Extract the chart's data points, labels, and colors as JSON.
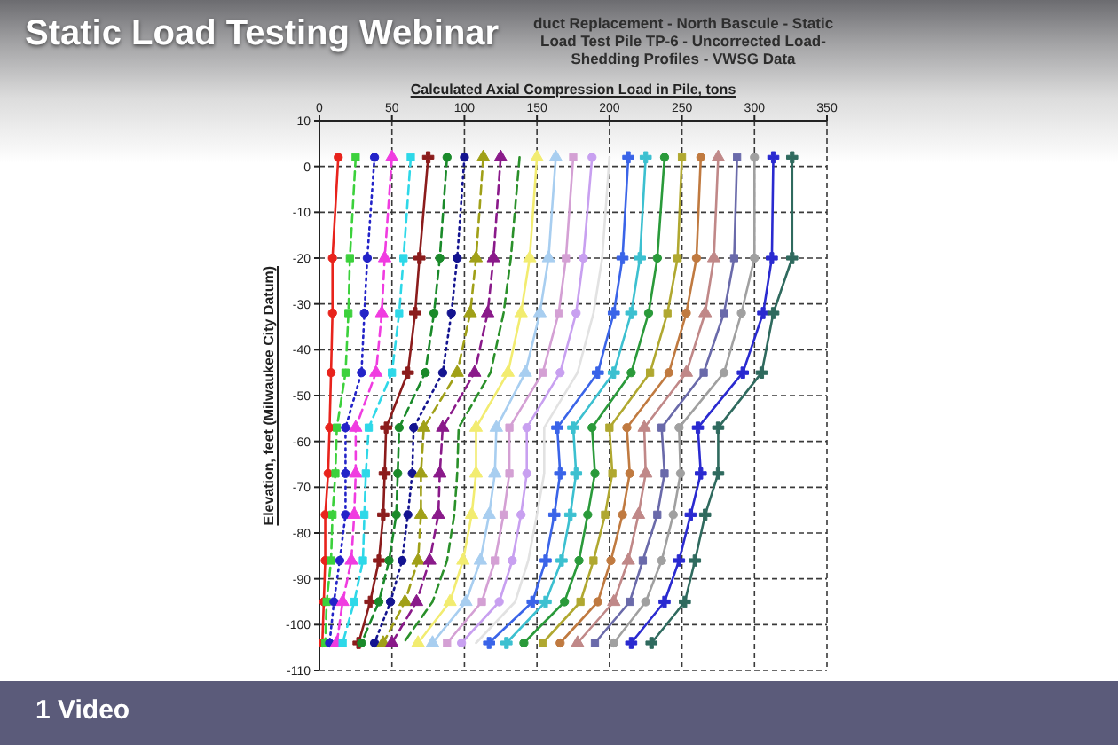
{
  "chart_data": {
    "type": "line",
    "title": "Static Load Testing Webinar",
    "subtitle": "duct Replacement - North Bascule - Static Load Test Pile TP-6 - Uncorrected Load-Shedding Profiles - VWSG Data",
    "xlabel": "Calculated Axial Compression Load in Pile, tons",
    "ylabel": "Elevation, feet (Milwaukee City Datum)",
    "annotations": [
      "1 Video"
    ],
    "xlim": [
      0,
      350
    ],
    "xticks": [
      0,
      50,
      100,
      150,
      200,
      250,
      300,
      350
    ],
    "ylim": [
      -110,
      10
    ],
    "yticks": [
      10,
      0,
      -10,
      -20,
      -30,
      -40,
      -50,
      -60,
      -70,
      -80,
      -90,
      -100,
      -110
    ],
    "grid": true,
    "series": [
      {
        "color": "#e8231c",
        "line_style": "solid",
        "marker": "circle",
        "x": [
          13,
          9,
          9,
          8,
          7,
          6,
          4,
          4,
          3,
          2
        ],
        "values": [
          2,
          -20,
          -32,
          -45,
          -57,
          -67,
          -76,
          -86,
          -95,
          -104
        ]
      },
      {
        "color": "#3cd13c",
        "line_style": "dashed",
        "marker": "square",
        "x": [
          25,
          21,
          20,
          18,
          12,
          11,
          9,
          8,
          5,
          4
        ],
        "values": [
          2,
          -20,
          -32,
          -45,
          -57,
          -67,
          -76,
          -86,
          -95,
          -104
        ]
      },
      {
        "color": "#2323c8",
        "line_style": "dotted",
        "marker": "circle",
        "x": [
          38,
          33,
          31,
          29,
          18,
          18,
          18,
          14,
          10,
          7
        ],
        "values": [
          2,
          -20,
          -32,
          -45,
          -57,
          -67,
          -76,
          -86,
          -95,
          -104
        ]
      },
      {
        "color": "#f03ce0",
        "line_style": "dashed",
        "marker": "triangle",
        "x": [
          50,
          45,
          43,
          39,
          25,
          25,
          24,
          22,
          16,
          12
        ],
        "values": [
          2,
          -20,
          -32,
          -45,
          -57,
          -67,
          -76,
          -86,
          -95,
          -104
        ]
      },
      {
        "color": "#2ed8e8",
        "line_style": "dashed",
        "marker": "square",
        "x": [
          63,
          58,
          55,
          50,
          34,
          32,
          31,
          30,
          24,
          16
        ],
        "values": [
          2,
          -20,
          -32,
          -45,
          -57,
          -67,
          -76,
          -86,
          -95,
          -104
        ]
      },
      {
        "color": "#8b1c1c",
        "line_style": "solid",
        "marker": "cross",
        "x": [
          75,
          69,
          66,
          61,
          46,
          45,
          44,
          41,
          35,
          27
        ],
        "values": [
          2,
          -20,
          -32,
          -45,
          -57,
          -67,
          -76,
          -86,
          -95,
          -104
        ]
      },
      {
        "color": "#1a8a2a",
        "line_style": "dashed",
        "marker": "circle",
        "x": [
          88,
          83,
          79,
          73,
          55,
          54,
          53,
          48,
          41,
          29
        ],
        "values": [
          2,
          -20,
          -32,
          -45,
          -57,
          -67,
          -76,
          -86,
          -95,
          -104
        ]
      },
      {
        "color": "#141490",
        "line_style": "dotted",
        "marker": "circle",
        "x": [
          100,
          95,
          91,
          85,
          65,
          64,
          61,
          57,
          49,
          38
        ],
        "values": [
          2,
          -20,
          -32,
          -45,
          -57,
          -67,
          -76,
          -86,
          -95,
          -104
        ]
      },
      {
        "color": "#a0a018",
        "line_style": "dashed",
        "marker": "triangle",
        "x": [
          113,
          108,
          104,
          95,
          72,
          70,
          70,
          68,
          59,
          44
        ],
        "values": [
          2,
          -20,
          -32,
          -45,
          -57,
          -67,
          -76,
          -86,
          -95,
          -104
        ]
      },
      {
        "color": "#8a1a8a",
        "line_style": "dashed",
        "marker": "triangle",
        "x": [
          125,
          120,
          116,
          107,
          85,
          83,
          82,
          76,
          67,
          50
        ],
        "values": [
          2,
          -20,
          -32,
          -45,
          -57,
          -67,
          -76,
          -86,
          -95,
          -104
        ]
      },
      {
        "color": "#2a902a",
        "line_style": "dashed",
        "marker": "none",
        "x": [
          138,
          132,
          127,
          118,
          96,
          95,
          93,
          88,
          78,
          58
        ],
        "values": [
          2,
          -20,
          -32,
          -45,
          -57,
          -67,
          -76,
          -86,
          -95,
          -104
        ]
      },
      {
        "color": "#f2ec70",
        "line_style": "solid",
        "marker": "triangle",
        "x": [
          150,
          145,
          139,
          130,
          108,
          108,
          105,
          99,
          90,
          68
        ],
        "values": [
          2,
          -20,
          -32,
          -45,
          -57,
          -67,
          -76,
          -86,
          -95,
          -104
        ]
      },
      {
        "color": "#a8cef0",
        "line_style": "solid",
        "marker": "triangle",
        "x": [
          163,
          158,
          152,
          142,
          122,
          121,
          117,
          111,
          101,
          78
        ],
        "values": [
          2,
          -20,
          -32,
          -45,
          -57,
          -67,
          -76,
          -86,
          -95,
          -104
        ]
      },
      {
        "color": "#d4a0d4",
        "line_style": "solid",
        "marker": "square",
        "x": [
          175,
          170,
          165,
          154,
          131,
          131,
          127,
          121,
          112,
          88
        ],
        "values": [
          2,
          -20,
          -32,
          -45,
          -57,
          -67,
          -76,
          -86,
          -95,
          -104
        ]
      },
      {
        "color": "#c8a0f0",
        "line_style": "solid",
        "marker": "circle",
        "x": [
          188,
          182,
          177,
          166,
          143,
          143,
          139,
          133,
          124,
          98
        ],
        "values": [
          2,
          -20,
          -32,
          -45,
          -57,
          -67,
          -76,
          -86,
          -95,
          -104
        ]
      },
      {
        "color": "#e2e2e2",
        "line_style": "solid",
        "marker": "none",
        "x": [
          200,
          195,
          189,
          178,
          155,
          155,
          150,
          144,
          135,
          108
        ],
        "values": [
          2,
          -20,
          -32,
          -45,
          -57,
          -67,
          -76,
          -86,
          -95,
          -104
        ]
      },
      {
        "color": "#3a64e8",
        "line_style": "solid",
        "marker": "cross",
        "x": [
          213,
          209,
          203,
          192,
          164,
          166,
          162,
          156,
          147,
          117
        ],
        "values": [
          2,
          -20,
          -32,
          -45,
          -57,
          -67,
          -76,
          -86,
          -95,
          -104
        ]
      },
      {
        "color": "#3cc0d0",
        "line_style": "solid",
        "marker": "cross",
        "x": [
          225,
          221,
          215,
          203,
          175,
          177,
          173,
          167,
          156,
          129
        ],
        "values": [
          2,
          -20,
          -32,
          -45,
          -57,
          -67,
          -76,
          -86,
          -95,
          -104
        ]
      },
      {
        "color": "#2a9a3a",
        "line_style": "solid",
        "marker": "circle",
        "x": [
          238,
          233,
          227,
          215,
          188,
          190,
          185,
          179,
          169,
          141
        ],
        "values": [
          2,
          -20,
          -32,
          -45,
          -57,
          -67,
          -76,
          -86,
          -95,
          -104
        ]
      },
      {
        "color": "#b0a830",
        "line_style": "solid",
        "marker": "square",
        "x": [
          250,
          247,
          240,
          228,
          200,
          202,
          197,
          189,
          180,
          154
        ],
        "values": [
          2,
          -20,
          -32,
          -45,
          -57,
          -67,
          -76,
          -86,
          -95,
          -104
        ]
      },
      {
        "color": "#c07a40",
        "line_style": "solid",
        "marker": "circle",
        "x": [
          263,
          260,
          253,
          241,
          212,
          214,
          209,
          201,
          192,
          166
        ],
        "values": [
          2,
          -20,
          -32,
          -45,
          -57,
          -67,
          -76,
          -86,
          -95,
          -104
        ]
      },
      {
        "color": "#c08888",
        "line_style": "solid",
        "marker": "triangle",
        "x": [
          275,
          272,
          266,
          253,
          224,
          225,
          220,
          213,
          203,
          178
        ],
        "values": [
          2,
          -20,
          -32,
          -45,
          -57,
          -67,
          -76,
          -86,
          -95,
          -104
        ]
      },
      {
        "color": "#6a6aaa",
        "line_style": "solid",
        "marker": "square",
        "x": [
          288,
          286,
          279,
          265,
          236,
          238,
          233,
          223,
          214,
          190
        ],
        "values": [
          2,
          -20,
          -32,
          -45,
          -57,
          -67,
          -76,
          -86,
          -95,
          -104
        ]
      },
      {
        "color": "#a0a0a0",
        "line_style": "solid",
        "marker": "circle",
        "x": [
          300,
          300,
          291,
          279,
          248,
          249,
          244,
          236,
          225,
          203
        ],
        "values": [
          2,
          -20,
          -32,
          -45,
          -57,
          -67,
          -76,
          -86,
          -95,
          -104
        ]
      },
      {
        "color": "#2a2ad0",
        "line_style": "solid",
        "marker": "cross",
        "x": [
          313,
          312,
          306,
          292,
          261,
          263,
          256,
          248,
          238,
          215
        ],
        "values": [
          2,
          -20,
          -32,
          -45,
          -57,
          -67,
          -76,
          -86,
          -95,
          -104
        ]
      },
      {
        "color": "#2f6a5e",
        "line_style": "solid",
        "marker": "cross",
        "x": [
          326,
          326,
          313,
          305,
          275,
          275,
          266,
          259,
          252,
          229
        ],
        "values": [
          2,
          -20,
          -32,
          -45,
          -57,
          -67,
          -76,
          -86,
          -95,
          -104
        ]
      }
    ]
  }
}
